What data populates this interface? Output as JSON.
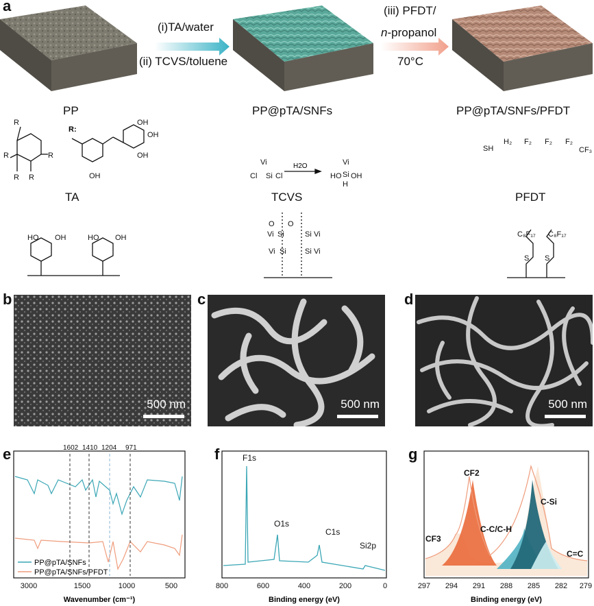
{
  "panel_a": {
    "letter": "a",
    "steps": {
      "step1": "(i)TA/water",
      "step2": "(ii) TCVS/toluene",
      "step3a": "(iii) PFDT/",
      "step3b_prefix": "n",
      "step3b_suffix": "-propanol",
      "step3c": "70°C"
    },
    "materials": {
      "pp": "PP",
      "pp_snf": "PP@pTA/SNFs",
      "pp_snf_pfdt": "PP@pTA/SNFs/PFDT"
    },
    "reagents": {
      "ta": "TA",
      "tcvs": "TCVS",
      "pfdt": "PFDT",
      "r_label": "R:",
      "h2o": "H2O"
    }
  },
  "panel_b": {
    "letter": "b",
    "scale": "500 nm"
  },
  "panel_c": {
    "letter": "c",
    "scale": "500 nm"
  },
  "panel_d": {
    "letter": "d",
    "scale": "500 nm"
  },
  "panel_e": {
    "letter": "e"
  },
  "panel_f": {
    "letter": "f"
  },
  "panel_g": {
    "letter": "g"
  },
  "colors": {
    "teal": "#3aa6b5",
    "salmon": "#ef9c7c",
    "orange": "#ea6a3a",
    "dark_teal": "#23697a",
    "light_teal": "#9fd8e0",
    "peach": "#f6d8c0"
  },
  "chart_data": [
    {
      "type": "line",
      "panel": "e",
      "xlabel": "Wavenumber (cm⁻¹)",
      "x_ticks": [
        "3000",
        "1500",
        "1000",
        "500"
      ],
      "broken_axis": true,
      "peak_labels": [
        "1602",
        "1410",
        "1204",
        "971"
      ],
      "peak_values": [
        1602,
        1410,
        1204,
        971
      ],
      "series": [
        {
          "name": "PP@pTA/SNFs",
          "color": "#3aa6b5"
        },
        {
          "name": "PP@pTA/SNFs/PFDT",
          "color": "#ef9c7c"
        }
      ]
    },
    {
      "type": "line",
      "panel": "f",
      "xlabel": "Binding energy (eV)",
      "x_ticks": [
        "800",
        "600",
        "400",
        "200",
        "0"
      ],
      "xlim": [
        800,
        0
      ],
      "peaks": [
        {
          "label": "F1s",
          "x": 689
        },
        {
          "label": "O1s",
          "x": 532
        },
        {
          "label": "C1s",
          "x": 285
        },
        {
          "label": "Si2p",
          "x": 102
        }
      ],
      "series": [
        {
          "color": "#3aa6b5"
        }
      ]
    },
    {
      "type": "area",
      "panel": "g",
      "xlabel": "Binding energy (eV)",
      "x_ticks": [
        "297",
        "294",
        "291",
        "288",
        "285",
        "282",
        "279"
      ],
      "xlim": [
        297,
        279
      ],
      "components": [
        {
          "label": "CF3",
          "center": 293.3,
          "color": "#f6d8c0"
        },
        {
          "label": "CF2",
          "center": 291.1,
          "color": "#ea6a3a"
        },
        {
          "label": "C-C/C-H",
          "center": 285.6,
          "color": "#9fd8e0"
        },
        {
          "label": "C-Si",
          "center": 284.9,
          "color": "#23697a"
        },
        {
          "label": "C=C",
          "center": 284.4,
          "color": "#cdeef2"
        }
      ]
    }
  ]
}
